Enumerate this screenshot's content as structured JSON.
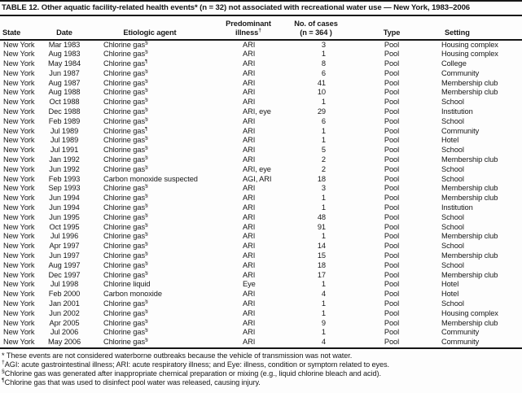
{
  "title": "TABLE 12. Other aquatic facility-related health events* (n = 32) not associated with recreational water use — New York, 1983–2006",
  "header": {
    "state": "State",
    "date": "Date",
    "agent": "Etiologic agent",
    "illness_line1": "Predominant",
    "illness_line2": "illness",
    "illness_marker": "†",
    "cases_line1": "No. of cases",
    "cases_line2": "(n = 364 )",
    "type": "Type",
    "setting": "Setting"
  },
  "rows": [
    {
      "state": "New York",
      "date": "Mar 1983",
      "agent": "Chlorine gas",
      "agent_marker": "§",
      "illness": "ARI",
      "cases": "3",
      "type": "Pool",
      "setting": "Housing complex"
    },
    {
      "state": "New York",
      "date": "Aug 1983",
      "agent": "Chlorine gas",
      "agent_marker": "§",
      "illness": "ARI",
      "cases": "1",
      "type": "Pool",
      "setting": "Housing complex"
    },
    {
      "state": "New York",
      "date": "May 1984",
      "agent": "Chlorine gas",
      "agent_marker": "¶",
      "illness": "ARI",
      "cases": "8",
      "type": "Pool",
      "setting": "College"
    },
    {
      "state": "New York",
      "date": "Jun 1987",
      "agent": "Chlorine gas",
      "agent_marker": "§",
      "illness": "ARI",
      "cases": "6",
      "type": "Pool",
      "setting": "Community"
    },
    {
      "state": "New York",
      "date": "Aug 1987",
      "agent": "Chlorine gas",
      "agent_marker": "§",
      "illness": "ARI",
      "cases": "41",
      "type": "Pool",
      "setting": "Membership club"
    },
    {
      "state": "New York",
      "date": "Aug 1988",
      "agent": "Chlorine gas",
      "agent_marker": "§",
      "illness": "ARI",
      "cases": "10",
      "type": "Pool",
      "setting": "Membership club"
    },
    {
      "state": "New York",
      "date": "Oct 1988",
      "agent": "Chlorine gas",
      "agent_marker": "§",
      "illness": "ARI",
      "cases": "1",
      "type": "Pool",
      "setting": "School"
    },
    {
      "state": "New York",
      "date": "Dec 1988",
      "agent": "Chlorine gas",
      "agent_marker": "§",
      "illness": "ARI, eye",
      "cases": "29",
      "type": "Pool",
      "setting": "Institution"
    },
    {
      "state": "New York",
      "date": "Feb 1989",
      "agent": "Chlorine gas",
      "agent_marker": "§",
      "illness": "ARI",
      "cases": "6",
      "type": "Pool",
      "setting": "School"
    },
    {
      "state": "New York",
      "date": "Jul 1989",
      "agent": "Chlorine gas",
      "agent_marker": "¶",
      "illness": "ARI",
      "cases": "1",
      "type": "Pool",
      "setting": "Community"
    },
    {
      "state": "New York",
      "date": "Jul 1989",
      "agent": "Chlorine gas",
      "agent_marker": "§",
      "illness": "ARI",
      "cases": "1",
      "type": "Pool",
      "setting": "Hotel"
    },
    {
      "state": "New York",
      "date": "Jul 1991",
      "agent": "Chlorine gas",
      "agent_marker": "§",
      "illness": "ARI",
      "cases": "5",
      "type": "Pool",
      "setting": "School"
    },
    {
      "state": "New York",
      "date": "Jan 1992",
      "agent": "Chlorine gas",
      "agent_marker": "§",
      "illness": "ARI",
      "cases": "2",
      "type": "Pool",
      "setting": "Membership club"
    },
    {
      "state": "New York",
      "date": "Jun 1992",
      "agent": "Chlorine gas",
      "agent_marker": "§",
      "illness": "ARI, eye",
      "cases": "2",
      "type": "Pool",
      "setting": "School"
    },
    {
      "state": "New York",
      "date": "Feb 1993",
      "agent": "Carbon monoxide suspected",
      "agent_marker": "",
      "illness": "AGI, ARI",
      "cases": "18",
      "type": "Pool",
      "setting": "School"
    },
    {
      "state": "New York",
      "date": "Sep 1993",
      "agent": "Chlorine gas",
      "agent_marker": "§",
      "illness": "ARI",
      "cases": "3",
      "type": "Pool",
      "setting": "Membership club"
    },
    {
      "state": "New York",
      "date": "Jun 1994",
      "agent": "Chlorine gas",
      "agent_marker": "§",
      "illness": "ARI",
      "cases": "1",
      "type": "Pool",
      "setting": "Membership club"
    },
    {
      "state": "New York",
      "date": "Jun 1994",
      "agent": "Chlorine gas",
      "agent_marker": "§",
      "illness": "ARI",
      "cases": "1",
      "type": "Pool",
      "setting": "Institution"
    },
    {
      "state": "New York",
      "date": "Jun 1995",
      "agent": "Chlorine gas",
      "agent_marker": "§",
      "illness": "ARI",
      "cases": "48",
      "type": "Pool",
      "setting": "School"
    },
    {
      "state": "New York",
      "date": "Oct 1995",
      "agent": "Chlorine gas",
      "agent_marker": "§",
      "illness": "ARI",
      "cases": "91",
      "type": "Pool",
      "setting": "School"
    },
    {
      "state": "New York",
      "date": "Jul 1996",
      "agent": "Chlorine gas",
      "agent_marker": "§",
      "illness": "ARI",
      "cases": "1",
      "type": "Pool",
      "setting": "Membership club"
    },
    {
      "state": "New York",
      "date": "Apr 1997",
      "agent": "Chlorine gas",
      "agent_marker": "§",
      "illness": "ARI",
      "cases": "14",
      "type": "Pool",
      "setting": "School"
    },
    {
      "state": "New York",
      "date": "Jun 1997",
      "agent": "Chlorine gas",
      "agent_marker": "§",
      "illness": "ARI",
      "cases": "15",
      "type": "Pool",
      "setting": "Membership club"
    },
    {
      "state": "New York",
      "date": "Aug 1997",
      "agent": "Chlorine gas",
      "agent_marker": "§",
      "illness": "ARI",
      "cases": "18",
      "type": "Pool",
      "setting": "School"
    },
    {
      "state": "New York",
      "date": "Dec 1997",
      "agent": "Chlorine gas",
      "agent_marker": "§",
      "illness": "ARI",
      "cases": "17",
      "type": "Pool",
      "setting": "Membership club"
    },
    {
      "state": "New York",
      "date": "Jul 1998",
      "agent": "Chlorine liquid",
      "agent_marker": "",
      "illness": "Eye",
      "cases": "1",
      "type": "Pool",
      "setting": "Hotel"
    },
    {
      "state": "New York",
      "date": "Feb 2000",
      "agent": "Carbon monoxide",
      "agent_marker": "",
      "illness": "ARI",
      "cases": "4",
      "type": "Pool",
      "setting": "Hotel"
    },
    {
      "state": "New York",
      "date": "Jan 2001",
      "agent": "Chlorine gas",
      "agent_marker": "§",
      "illness": "ARI",
      "cases": "1",
      "type": "Pool",
      "setting": "School"
    },
    {
      "state": "New York",
      "date": "Jun 2002",
      "agent": "Chlorine gas",
      "agent_marker": "§",
      "illness": "ARI",
      "cases": "1",
      "type": "Pool",
      "setting": "Housing complex"
    },
    {
      "state": "New York",
      "date": "Apr 2005",
      "agent": "Chlorine gas",
      "agent_marker": "§",
      "illness": "ARI",
      "cases": "9",
      "type": "Pool",
      "setting": "Membership club"
    },
    {
      "state": "New York",
      "date": "Jul 2006",
      "agent": "Chlorine gas",
      "agent_marker": "§",
      "illness": "ARI",
      "cases": "1",
      "type": "Pool",
      "setting": "Community"
    },
    {
      "state": "New York",
      "date": "May 2006",
      "agent": "Chlorine gas",
      "agent_marker": "§",
      "illness": "ARI",
      "cases": "4",
      "type": "Pool",
      "setting": "Community"
    }
  ],
  "footnotes": [
    {
      "marker": "*",
      "text": "These events are not considered waterborne outbreaks because the vehicle of transmission was not water."
    },
    {
      "marker": "†",
      "text": "AGI: acute gastrointestinal illness; ARI: acute respiratory illness; and Eye: illness, condition or symptom related to eyes."
    },
    {
      "marker": "§",
      "text": "Chlorine gas was generated after inappropriate chemical preparation or mixing (e.g., liquid chlorine bleach and acid)."
    },
    {
      "marker": "¶",
      "text": "Chlorine gas that was used to disinfect pool water was released, causing injury."
    }
  ],
  "colors": {
    "text": "#181818",
    "rule": "#161616",
    "background": "#fdfdfd"
  }
}
